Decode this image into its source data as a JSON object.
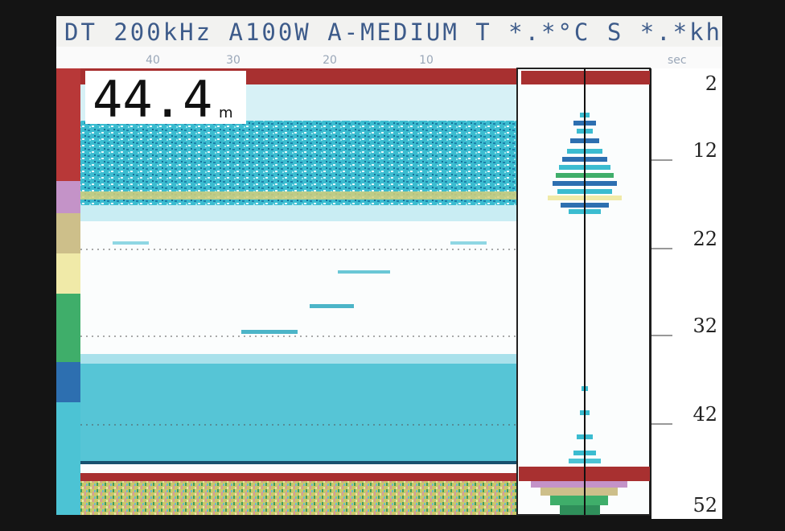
{
  "header": {
    "status": "DT 200kHz A100W A-MEDIUM T *.*°C S *.*kh"
  },
  "time_scale": {
    "labels": [
      "40",
      "30",
      "20",
      "10"
    ],
    "unit": "sec"
  },
  "depth_readout": {
    "value": "44.4",
    "unit": "m"
  },
  "depth_scale": {
    "labels": [
      "2",
      "12",
      "22",
      "32",
      "42",
      "52"
    ]
  }
}
